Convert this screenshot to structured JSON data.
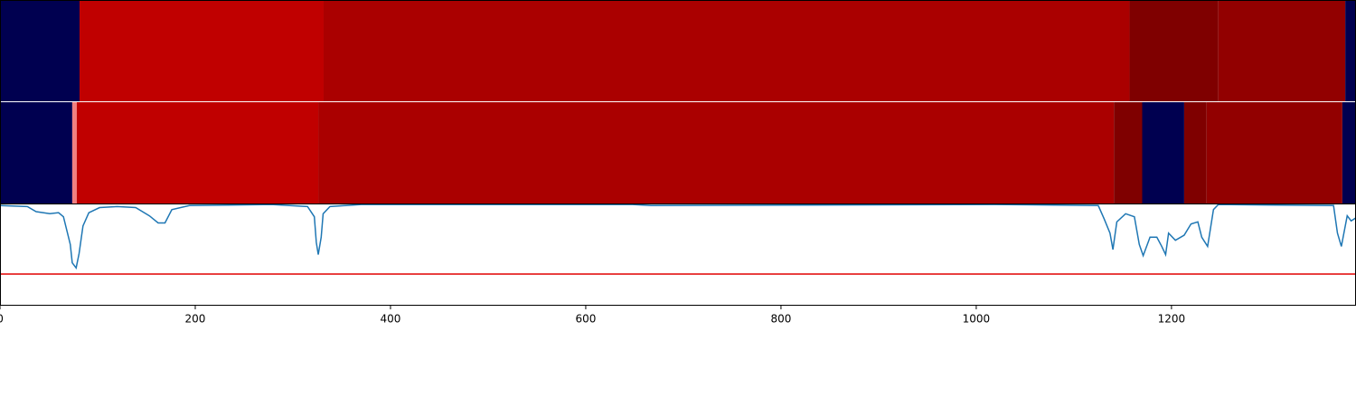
{
  "chart_data": {
    "type": "segments",
    "xlim": [
      0,
      1389
    ],
    "xticks": [
      0,
      200,
      400,
      600,
      800,
      1000,
      1200
    ],
    "rows": [
      [
        {
          "start": 0,
          "end": 81.5,
          "color": "#000050"
        },
        {
          "start": 81.5,
          "end": 331.5,
          "color": "#c00000"
        },
        {
          "start": 331.5,
          "end": 1157,
          "color": "#aa0000"
        },
        {
          "start": 1157,
          "end": 1248,
          "color": "#7f0000"
        },
        {
          "start": 1248,
          "end": 1378,
          "color": "#920000"
        },
        {
          "start": 1378,
          "end": 1389,
          "color": "#000050"
        }
      ],
      [
        {
          "start": 0,
          "end": 74,
          "color": "#000050"
        },
        {
          "start": 74,
          "end": 78.7,
          "color": "#f08080"
        },
        {
          "start": 78.7,
          "end": 326,
          "color": "#c00000"
        },
        {
          "start": 326,
          "end": 1141,
          "color": "#aa0000"
        },
        {
          "start": 1141,
          "end": 1170,
          "color": "#7f0000"
        },
        {
          "start": 1170,
          "end": 1213,
          "color": "#000050"
        },
        {
          "start": 1213,
          "end": 1236,
          "color": "#7f0000"
        },
        {
          "start": 1236,
          "end": 1375,
          "color": "#920000"
        },
        {
          "start": 1375,
          "end": 1389,
          "color": "#000050"
        }
      ]
    ],
    "line": {
      "color": "#1f77b4",
      "ylim": [
        0,
        1
      ],
      "x": [
        0,
        28,
        37,
        51,
        60,
        65,
        72,
        74,
        78,
        81,
        85,
        91,
        102,
        120,
        139,
        153,
        162,
        169,
        176,
        194,
        278,
        315,
        322,
        324,
        326,
        329,
        331,
        338,
        370,
        648,
        667,
        1019,
        1125,
        1131,
        1137,
        1140,
        1144,
        1153,
        1162,
        1167,
        1171,
        1178,
        1185,
        1190,
        1194,
        1197,
        1204,
        1213,
        1220,
        1227,
        1231,
        1237,
        1243,
        1248,
        1366,
        1370,
        1374,
        1380,
        1384,
        1389
      ],
      "values": [
        0.98,
        0.97,
        0.92,
        0.9,
        0.91,
        0.87,
        0.6,
        0.42,
        0.37,
        0.51,
        0.78,
        0.91,
        0.96,
        0.97,
        0.96,
        0.88,
        0.81,
        0.81,
        0.94,
        0.98,
        0.99,
        0.97,
        0.87,
        0.62,
        0.5,
        0.67,
        0.9,
        0.97,
        0.99,
        0.99,
        0.98,
        0.99,
        0.98,
        0.85,
        0.71,
        0.55,
        0.82,
        0.9,
        0.87,
        0.6,
        0.49,
        0.67,
        0.67,
        0.58,
        0.5,
        0.71,
        0.64,
        0.69,
        0.8,
        0.82,
        0.67,
        0.58,
        0.94,
        0.99,
        0.98,
        0.71,
        0.58,
        0.88,
        0.83,
        0.86
      ]
    },
    "threshold": {
      "value": 0.31,
      "color": "#e00000"
    }
  }
}
